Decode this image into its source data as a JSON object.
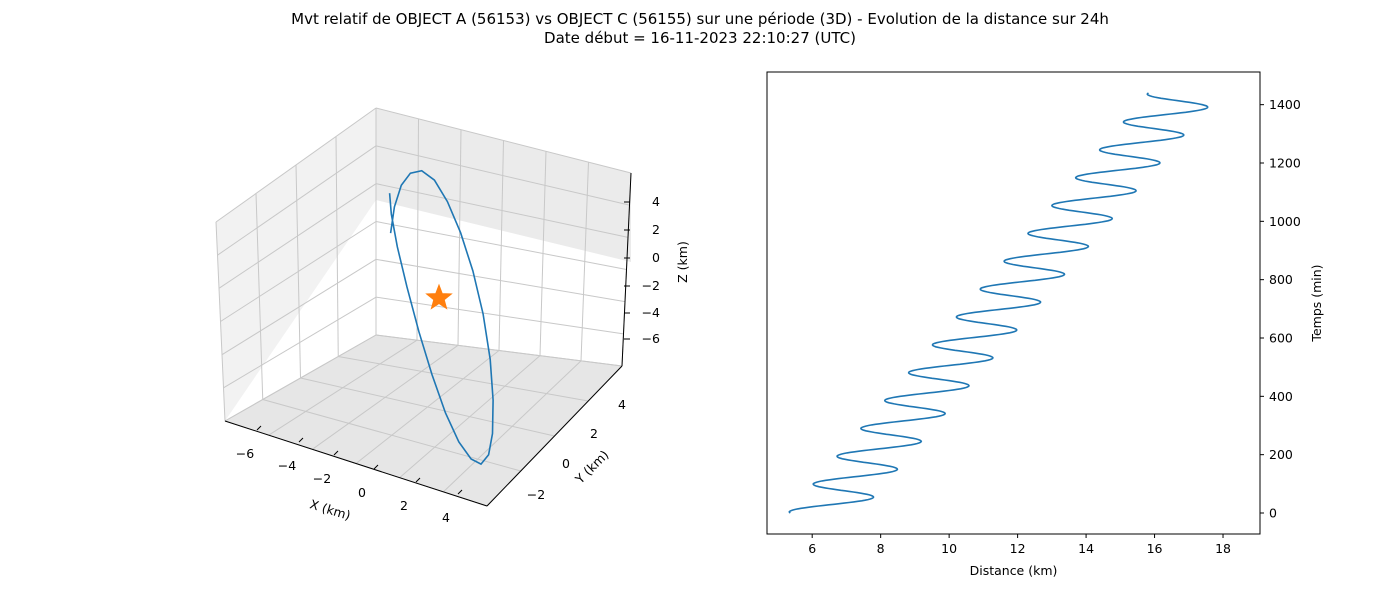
{
  "figure": {
    "title_line1": "Mvt relatif de OBJECT A (56153) vs OBJECT C (56155) sur une période (3D) - Evolution de la distance sur 24h",
    "title_line2": "Date début = 16-11-2023 22:10:27 (UTC)"
  },
  "colors": {
    "series": "#1f77b4",
    "marker": "#ff7f0e",
    "pane": "#f2f2f2",
    "grid": "#c8c8c8"
  },
  "chart_data": [
    {
      "type": "line3d",
      "xlabel": "X (km)",
      "ylabel": "Y (km)",
      "zlabel": "Z (km)",
      "x_ticks": [
        "−6",
        "−4",
        "−2",
        "0",
        "2",
        "4"
      ],
      "y_ticks": [
        "−2",
        "0",
        "2",
        "4"
      ],
      "z_ticks": [
        "4",
        "2",
        "0",
        "−2",
        "−4",
        "−6"
      ],
      "xlim": [
        -7.3,
        5.3
      ],
      "ylim": [
        -3.3,
        5.3
      ],
      "zlim": [
        -7.3,
        5.3
      ],
      "grid": true,
      "series": [
        {
          "x": [
            -4.8,
            -4.6,
            -4.0,
            -3.1,
            -2.0,
            -0.8,
            0.4,
            1.6,
            2.7,
            3.6,
            4.3,
            4.7,
            4.8,
            4.6,
            4.0,
            3.1,
            2.0,
            0.8,
            -0.4,
            -1.6,
            -2.7,
            -3.6,
            -4.3,
            -4.7
          ],
          "y": [
            0.0,
            -0.2,
            -0.3,
            -0.1,
            0.3,
            0.8,
            1.5,
            2.1,
            2.7,
            3.1,
            3.3,
            3.2,
            2.9,
            2.4,
            1.8,
            1.2,
            0.6,
            0.1,
            -0.3,
            -0.5,
            -0.5,
            -0.4,
            -0.2,
            0.0
          ],
          "z": [
            4.5,
            3.6,
            2.2,
            0.5,
            -1.4,
            -3.2,
            -4.8,
            -6.0,
            -6.7,
            -6.9,
            -6.5,
            -5.6,
            -4.2,
            -2.5,
            -0.6,
            1.2,
            2.8,
            4.1,
            5.0,
            5.4,
            5.3,
            4.8,
            3.9,
            2.8
          ]
        }
      ],
      "marker": {
        "symbol": "star",
        "x": 0,
        "y": 0,
        "z": 0
      }
    },
    {
      "type": "line",
      "xlabel": "Distance (km)",
      "ylabel": "Temps (min)",
      "xlim": [
        4.68,
        19.08
      ],
      "ylim": [
        -72,
        1512
      ],
      "x_ticks": [
        6,
        8,
        10,
        12,
        14,
        16,
        18
      ],
      "y_ticks": [
        0,
        200,
        400,
        600,
        800,
        1000,
        1200,
        1400
      ],
      "grid": false,
      "series": [
        {
          "distance_model": "d = 6.35 + 0.0073*t + 1.05*sin(2*pi*t/95.5 - 1.91)",
          "t_range": [
            0,
            1440
          ]
        }
      ]
    }
  ]
}
